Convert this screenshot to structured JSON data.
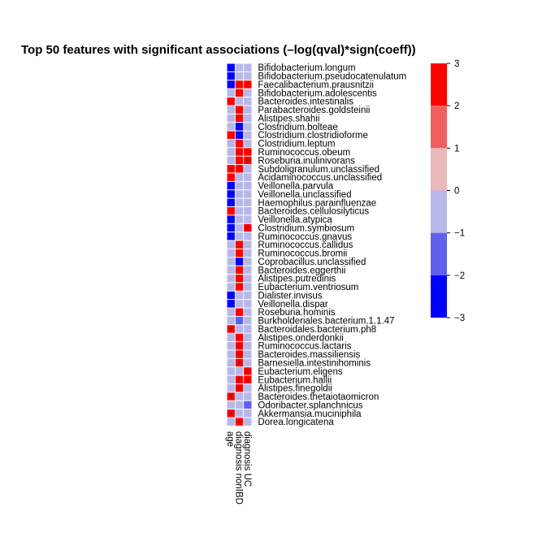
{
  "chart_data": {
    "type": "heatmap",
    "title": "Top 50 features with significant associations (–log(qval)*sign(coeff))",
    "columns": [
      "age",
      "diagnosis nonIBD",
      "diagnosis UC"
    ],
    "rows": [
      "Bifidobacterium.longum",
      "Bifidobacterium.pseudocatenulatum",
      "Faecalibacterium.prausnitzii",
      "Bifidobacterium.adolescentis",
      "Bacteroides.intestinalis",
      "Parabacteroides.goldsteinii",
      "Alistipes.shahii",
      "Clostridium.bolteae",
      "Clostridium.clostridioforme",
      "Clostridium.leptum",
      "Ruminococcus.obeum",
      "Roseburia.inulinivorans",
      "Subdoligranulum.unclassified",
      "Acidaminococcus.unclassified",
      "Veillonella.parvula",
      "Veillonella.unclassified",
      "Haemophilus.parainfluenzae",
      "Bacteroides.cellulosilyticus",
      "Veillonella.atypica",
      "Clostridium.symbiosum",
      "Ruminococcus.gnavus",
      "Ruminococcus.callidus",
      "Ruminococcus.bromii",
      "Coprobacillus.unclassified",
      "Bacteroides.eggerthii",
      "Alistipes.putredinis",
      "Eubacterium.ventriosum",
      "Dialister.invisus",
      "Veillonella.dispar",
      "Roseburia.hominis",
      "Burkholderiales.bacterium.1.1.47",
      "Bacteroidales.bacterium.ph8",
      "Alistipes.onderdonkii",
      "Ruminococcus.lactaris",
      "Bacteroides.massiliensis",
      "Barnesiella.intestinihominis",
      "Eubacterium.eligens",
      "Eubacterium.hallii",
      "Alistipes.finegoldii",
      "Bacteroides.thetaiotaomicron",
      "Odoribacter.splanchnicus",
      "Akkermansia.muciniphila",
      "Dorea.longicatena"
    ],
    "values": [
      [
        -3,
        -0.5,
        -0.5
      ],
      [
        -3,
        -0.5,
        -0.5
      ],
      [
        -3,
        3,
        3
      ],
      [
        -0.5,
        3,
        -0.5
      ],
      [
        3,
        -0.5,
        -0.5
      ],
      [
        -0.5,
        3,
        -0.5
      ],
      [
        -0.5,
        3,
        -0.5
      ],
      [
        -0.5,
        -3,
        -0.5
      ],
      [
        3,
        -3,
        -0.5
      ],
      [
        -0.5,
        3,
        -0.5
      ],
      [
        -0.5,
        2,
        3
      ],
      [
        -0.5,
        3,
        2
      ],
      [
        2,
        3,
        -0.5
      ],
      [
        3,
        -0.5,
        -0.5
      ],
      [
        -3,
        -0.5,
        -0.5
      ],
      [
        -3,
        -0.5,
        -0.5
      ],
      [
        -3,
        -0.5,
        -0.5
      ],
      [
        3,
        -0.5,
        -0.5
      ],
      [
        -3,
        -0.5,
        -0.5
      ],
      [
        -3,
        -0.5,
        2
      ],
      [
        -3,
        -0.5,
        -0.5
      ],
      [
        -0.5,
        3,
        -0.5
      ],
      [
        -0.5,
        3,
        -0.5
      ],
      [
        -0.5,
        -3,
        -0.5
      ],
      [
        -0.5,
        3,
        -0.5
      ],
      [
        -0.5,
        3,
        -0.5
      ],
      [
        -0.5,
        3,
        -0.5
      ],
      [
        -3,
        -0.5,
        -0.5
      ],
      [
        -3,
        -0.5,
        -0.5
      ],
      [
        -0.5,
        3,
        -0.5
      ],
      [
        -0.5,
        -2,
        -0.5
      ],
      [
        2,
        -0.5,
        -0.5
      ],
      [
        -0.5,
        2,
        -0.5
      ],
      [
        -0.5,
        2,
        -0.5
      ],
      [
        -0.5,
        2,
        -0.5
      ],
      [
        -0.5,
        2,
        -0.5
      ],
      [
        -0.5,
        -0.5,
        2
      ],
      [
        -0.5,
        2,
        2
      ],
      [
        -0.5,
        2,
        -0.5
      ],
      [
        2,
        -0.5,
        -0.5
      ],
      [
        -0.5,
        -0.5,
        -2
      ],
      [
        2,
        -0.5,
        -0.5
      ],
      [
        -0.5,
        2,
        -0.5
      ]
    ],
    "markers": [
      [
        11,
        2,
        "+"
      ],
      [
        12,
        0,
        "+"
      ],
      [
        19,
        2,
        "+"
      ],
      [
        31,
        0,
        "+"
      ],
      [
        32,
        1,
        "+"
      ],
      [
        33,
        1,
        "+"
      ],
      [
        34,
        1,
        "+"
      ],
      [
        35,
        1,
        "+"
      ],
      [
        36,
        2,
        "+"
      ],
      [
        37,
        1,
        "+"
      ],
      [
        37,
        2,
        "+"
      ],
      [
        38,
        1,
        "+"
      ],
      [
        39,
        0,
        "+"
      ],
      [
        41,
        0,
        "+"
      ],
      [
        42,
        1,
        "+"
      ]
    ],
    "legend": {
      "ticks": [
        3,
        2,
        1,
        0,
        -1,
        -2,
        -3
      ],
      "tick_labels": [
        "3",
        "2",
        "1",
        "0",
        "−1",
        "−2",
        "−3"
      ],
      "range": [
        -3,
        3
      ],
      "bins": [
        {
          "from": 2,
          "to": 3,
          "color": "#ff0000"
        },
        {
          "from": 1,
          "to": 2,
          "color": "#f06060"
        },
        {
          "from": 0,
          "to": 1,
          "color": "#eab9b9"
        },
        {
          "from": -1,
          "to": 0,
          "color": "#b8b8e8"
        },
        {
          "from": -2,
          "to": -1,
          "color": "#6060f0"
        },
        {
          "from": -3,
          "to": -2,
          "color": "#0000ff"
        }
      ],
      "placement": "right"
    }
  }
}
